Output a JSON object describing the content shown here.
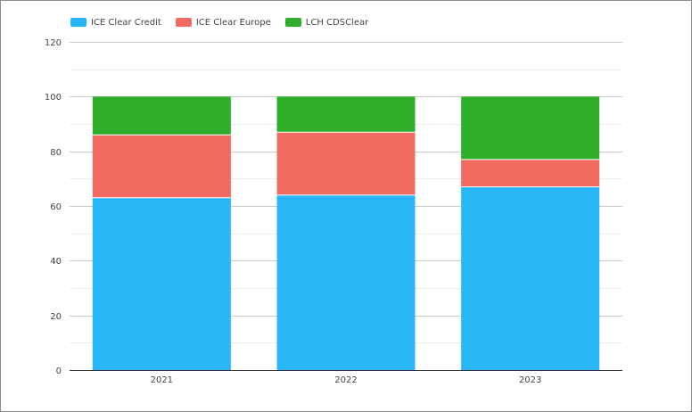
{
  "chart_data": {
    "type": "bar",
    "stacked": true,
    "categories": [
      "2021",
      "2022",
      "2023"
    ],
    "series": [
      {
        "name": "ICE Clear Credit",
        "values": [
          63,
          64,
          67
        ],
        "color": "#29b6f6"
      },
      {
        "name": "ICE Clear Europe",
        "values": [
          23,
          23,
          10
        ],
        "color": "#f26b60"
      },
      {
        "name": "LCH CDSClear",
        "values": [
          14,
          13,
          23
        ],
        "color": "#2eae2b"
      }
    ],
    "ylim": [
      0,
      120
    ],
    "yticks": [
      0,
      20,
      40,
      60,
      80,
      100,
      120
    ],
    "title": "",
    "xlabel": "",
    "ylabel": "",
    "grid": true,
    "legend_position": "top-left"
  }
}
